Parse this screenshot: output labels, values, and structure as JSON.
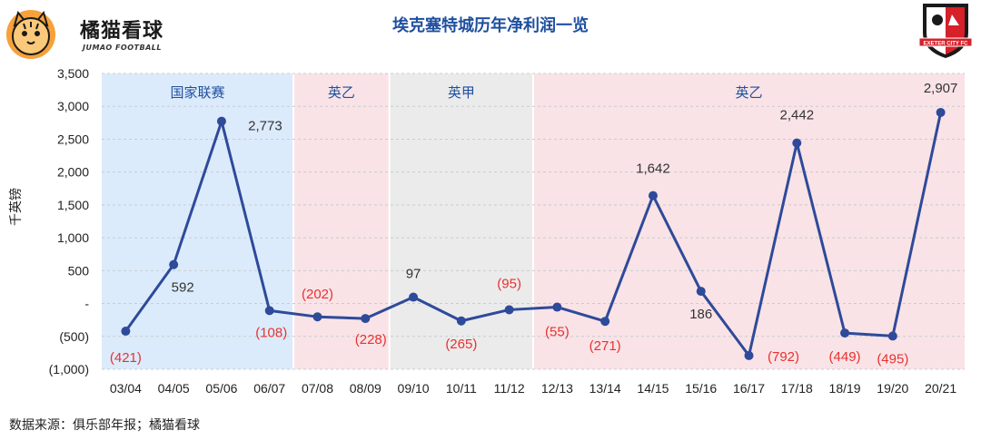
{
  "logo": {
    "name": "橘猫看球",
    "sub": "JUMAO FOOTBALL"
  },
  "badge": {
    "text": "EXETER CITY FC"
  },
  "source": "数据来源：俱乐部年报；橘猫看球",
  "chart_data": {
    "type": "line",
    "title": "埃克塞特城历年净利润一览",
    "ylabel": "千英镑",
    "xlabel": "",
    "ylim": [
      -1000,
      3500
    ],
    "yticks": [
      3500,
      3000,
      2500,
      2000,
      1500,
      1000,
      500,
      0,
      -500,
      -1000
    ],
    "ytick_labels": [
      "3,500",
      "3,000",
      "2,500",
      "2,000",
      "1,500",
      "1,000",
      "500",
      "-",
      "(500)",
      "(1,000)"
    ],
    "categories": [
      "03/04",
      "04/05",
      "05/06",
      "06/07",
      "07/08",
      "08/09",
      "09/10",
      "10/11",
      "11/12",
      "12/13",
      "13/14",
      "14/15",
      "15/16",
      "16/17",
      "17/18",
      "18/19",
      "19/20",
      "20/21"
    ],
    "values": [
      -421,
      592,
      2773,
      -108,
      -202,
      -228,
      97,
      -265,
      -95,
      -55,
      -271,
      1642,
      186,
      -792,
      2442,
      -449,
      -495,
      2907
    ],
    "data_labels": [
      "(421)",
      "592",
      "2,773",
      "(108)",
      "(202)",
      "(228)",
      "97",
      "(265)",
      "(95)",
      "(55)",
      "(271)",
      "1,642",
      "186",
      "(792)",
      "2,442",
      "(449)",
      "(495)",
      "2,907"
    ],
    "line_color": "#2e4a9a",
    "negative_label_color": "#e8312f",
    "positive_label_color": "#333333",
    "bands": [
      {
        "label": "国家联赛",
        "start": 0,
        "end": 3,
        "color": "#dcebfb"
      },
      {
        "label": "英乙",
        "start": 4,
        "end": 5,
        "color": "#f9e3e6"
      },
      {
        "label": "英甲",
        "start": 6,
        "end": 8,
        "color": "#ebebeb"
      },
      {
        "label": "英乙",
        "start": 9,
        "end": 17,
        "color": "#f9e3e6"
      }
    ],
    "band_label_color": "#1f4f9f",
    "grid": true
  }
}
